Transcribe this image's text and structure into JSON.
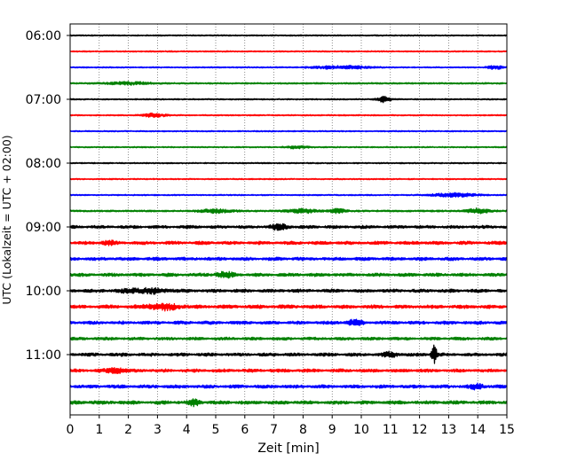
{
  "chart_data": {
    "type": "line",
    "title": "",
    "xlabel": "Zeit  [min]",
    "ylabel": "UTC (Lokalzeit = UTC + 02:00)",
    "xlim": [
      0,
      15
    ],
    "x_ticks": [
      0,
      1,
      2,
      3,
      4,
      5,
      6,
      7,
      8,
      9,
      10,
      11,
      12,
      13,
      14,
      15
    ],
    "x_tick_labels": [
      "0",
      "1",
      "2",
      "3",
      "4",
      "5",
      "6",
      "7",
      "8",
      "9",
      "10",
      "11",
      "12",
      "13",
      "14",
      "15"
    ],
    "y_tick_labels": [
      "06:00",
      "07:00",
      "08:00",
      "09:00",
      "10:00",
      "11:00"
    ],
    "y_tick_traces": [
      0,
      4,
      8,
      12,
      16,
      20
    ],
    "grid": "vertical dotted",
    "legend": "none",
    "trace_colors": [
      "#000000",
      "#ff0000",
      "#0000ff",
      "#008000"
    ],
    "minutes_per_trace": 15,
    "traces": [
      {
        "start": "06:00",
        "color": "#000000",
        "noise": 0.1,
        "events": []
      },
      {
        "start": "06:15",
        "color": "#ff0000",
        "noise": 0.1,
        "events": []
      },
      {
        "start": "06:30",
        "color": "#0000ff",
        "noise": 0.1,
        "events": [
          {
            "t": 9.3,
            "dur": 1.5,
            "amp": 0.25
          },
          {
            "t": 14.6,
            "dur": 0.4,
            "amp": 0.3
          }
        ]
      },
      {
        "start": "06:45",
        "color": "#008000",
        "noise": 0.12,
        "events": [
          {
            "t": 2.0,
            "dur": 1.2,
            "amp": 0.2
          }
        ]
      },
      {
        "start": "07:00",
        "color": "#000000",
        "noise": 0.1,
        "events": [
          {
            "t": 10.8,
            "dur": 0.4,
            "amp": 0.45
          }
        ]
      },
      {
        "start": "07:15",
        "color": "#ff0000",
        "noise": 0.1,
        "events": [
          {
            "t": 2.9,
            "dur": 0.6,
            "amp": 0.3
          }
        ]
      },
      {
        "start": "07:30",
        "color": "#0000ff",
        "noise": 0.1,
        "events": []
      },
      {
        "start": "07:45",
        "color": "#008000",
        "noise": 0.1,
        "events": [
          {
            "t": 7.8,
            "dur": 0.6,
            "amp": 0.2
          }
        ]
      },
      {
        "start": "08:00",
        "color": "#000000",
        "noise": 0.1,
        "events": []
      },
      {
        "start": "08:15",
        "color": "#ff0000",
        "noise": 0.1,
        "events": []
      },
      {
        "start": "08:30",
        "color": "#0000ff",
        "noise": 0.1,
        "events": [
          {
            "t": 13.2,
            "dur": 1.2,
            "amp": 0.3
          }
        ]
      },
      {
        "start": "08:45",
        "color": "#008000",
        "noise": 0.14,
        "events": [
          {
            "t": 5.0,
            "dur": 0.8,
            "amp": 0.3
          },
          {
            "t": 8.0,
            "dur": 0.8,
            "amp": 0.3
          },
          {
            "t": 9.2,
            "dur": 0.4,
            "amp": 0.3
          },
          {
            "t": 14.0,
            "dur": 0.6,
            "amp": 0.35
          }
        ]
      },
      {
        "start": "09:00",
        "color": "#000000",
        "noise": 0.22,
        "events": [
          {
            "t": 7.2,
            "dur": 0.5,
            "amp": 0.35
          }
        ]
      },
      {
        "start": "09:15",
        "color": "#ff0000",
        "noise": 0.24,
        "events": [
          {
            "t": 1.3,
            "dur": 0.3,
            "amp": 0.35
          }
        ]
      },
      {
        "start": "09:30",
        "color": "#0000ff",
        "noise": 0.24,
        "events": []
      },
      {
        "start": "09:45",
        "color": "#008000",
        "noise": 0.24,
        "events": [
          {
            "t": 5.3,
            "dur": 0.5,
            "amp": 0.35
          }
        ]
      },
      {
        "start": "10:00",
        "color": "#000000",
        "noise": 0.24,
        "events": [
          {
            "t": 2.6,
            "dur": 1.2,
            "amp": 0.35
          }
        ]
      },
      {
        "start": "10:15",
        "color": "#ff0000",
        "noise": 0.26,
        "events": [
          {
            "t": 3.2,
            "dur": 0.9,
            "amp": 0.45
          }
        ]
      },
      {
        "start": "10:30",
        "color": "#0000ff",
        "noise": 0.24,
        "events": [
          {
            "t": 9.8,
            "dur": 0.4,
            "amp": 0.4
          }
        ]
      },
      {
        "start": "10:45",
        "color": "#008000",
        "noise": 0.22,
        "events": []
      },
      {
        "start": "11:00",
        "color": "#000000",
        "noise": 0.24,
        "events": [
          {
            "t": 12.5,
            "dur": 0.15,
            "amp": 1.4
          },
          {
            "t": 11.0,
            "dur": 0.4,
            "amp": 0.3
          }
        ]
      },
      {
        "start": "11:15",
        "color": "#ff0000",
        "noise": 0.24,
        "events": [
          {
            "t": 1.6,
            "dur": 0.5,
            "amp": 0.35
          }
        ]
      },
      {
        "start": "11:30",
        "color": "#0000ff",
        "noise": 0.24,
        "events": [
          {
            "t": 14.0,
            "dur": 0.4,
            "amp": 0.35
          }
        ]
      },
      {
        "start": "11:45",
        "color": "#008000",
        "noise": 0.26,
        "events": [
          {
            "t": 4.3,
            "dur": 0.3,
            "amp": 0.45
          }
        ]
      }
    ]
  }
}
